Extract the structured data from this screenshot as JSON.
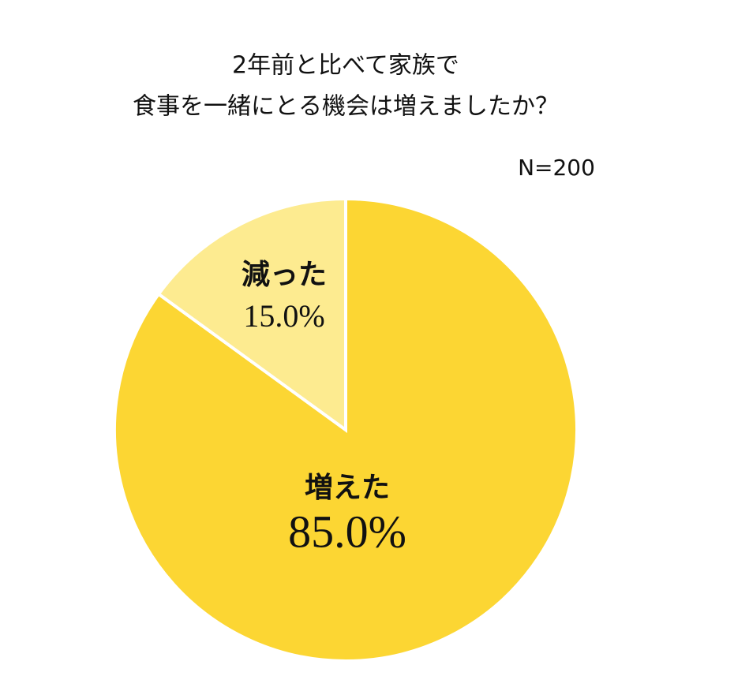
{
  "chart_data": {
    "type": "pie",
    "title": [
      "2年前と比べて家族で",
      "食事を一緒にとる機会は増えましたか？"
    ],
    "subtitle": "N=200",
    "categories": [
      "増えた",
      "減った"
    ],
    "values": [
      85.0,
      15.0
    ],
    "value_labels": [
      "85.0%",
      "15.0%"
    ],
    "colors": [
      "#fcd633",
      "#fdeb90"
    ]
  }
}
